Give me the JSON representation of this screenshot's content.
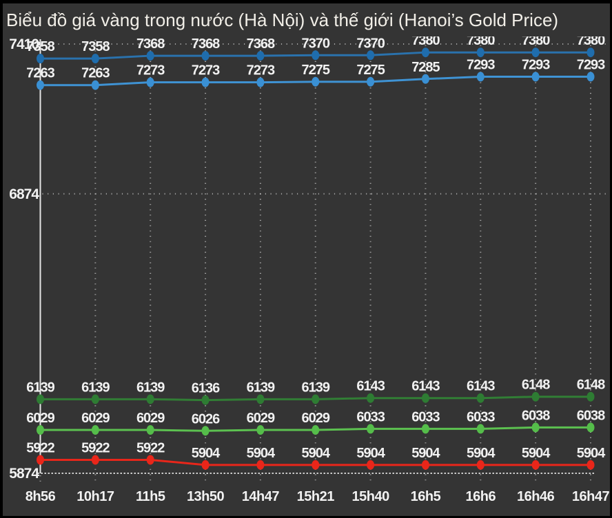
{
  "window": {
    "background": "#343434",
    "border_color": "#000000"
  },
  "colors": {
    "title_text": "#f2efe8",
    "label_text": "#f2f2f2",
    "grid_dots": "rgba(255,255,255,0.55)",
    "axis_line": "#e5e5e5",
    "baseline": "#cccccc"
  },
  "chart_data": {
    "type": "line",
    "title": "Biểu đồ giá vàng trong nước (Hà Nội) và thế giới (Hanoi’s Gold Price)",
    "xlabel": "",
    "ylabel": "",
    "x_categories": [
      "8h56",
      "10h17",
      "11h5",
      "13h50",
      "14h47",
      "15h21",
      "15h40",
      "16h5",
      "16h6",
      "16h46",
      "16h47"
    ],
    "y_ticks": [
      7410,
      6874,
      5874
    ],
    "y_gridlines": [
      7410,
      6874
    ],
    "ylim": [
      5874,
      7410
    ],
    "grid": "dotted",
    "legend": "none",
    "point_labels": "shown above every point",
    "series": [
      {
        "id": "line-1",
        "color": "#2a72ad",
        "point_color": "#1f6dad",
        "values": [
          7358,
          7358,
          7368,
          7368,
          7368,
          7370,
          7370,
          7380,
          7380,
          7380,
          7380
        ]
      },
      {
        "id": "line-2",
        "color": "#3f93d4",
        "point_color": "#3a90d4",
        "values": [
          7263,
          7263,
          7273,
          7273,
          7273,
          7275,
          7275,
          7285,
          7293,
          7293,
          7293
        ]
      },
      {
        "id": "line-3",
        "color": "#317e35",
        "point_color": "#2e7c33",
        "values": [
          6139,
          6139,
          6139,
          6136,
          6139,
          6139,
          6143,
          6143,
          6143,
          6148,
          6148
        ]
      },
      {
        "id": "line-4",
        "color": "#5cc150",
        "point_color": "#55bd4a",
        "values": [
          6029,
          6029,
          6029,
          6026,
          6029,
          6029,
          6033,
          6033,
          6033,
          6038,
          6038
        ]
      },
      {
        "id": "line-5",
        "color": "#e9261a",
        "point_color": "#e9261a",
        "values": [
          5922,
          5922,
          5922,
          5904,
          5904,
          5904,
          5904,
          5904,
          5904,
          5904,
          5904
        ]
      }
    ]
  }
}
